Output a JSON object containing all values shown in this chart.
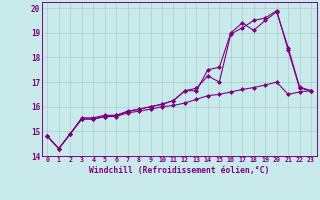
{
  "xlabel": "Windchill (Refroidissement éolien,°C)",
  "x": [
    0,
    1,
    2,
    3,
    4,
    5,
    6,
    7,
    8,
    9,
    10,
    11,
    12,
    13,
    14,
    15,
    16,
    17,
    18,
    19,
    20,
    21,
    22,
    23
  ],
  "line1": [
    14.8,
    14.3,
    14.9,
    15.5,
    15.5,
    15.6,
    15.65,
    15.8,
    15.9,
    16.0,
    16.1,
    16.25,
    16.65,
    16.65,
    17.5,
    17.6,
    19.0,
    19.4,
    19.1,
    19.5,
    19.85,
    18.4,
    16.8,
    16.65
  ],
  "line2": [
    14.8,
    14.3,
    14.9,
    15.55,
    15.55,
    15.65,
    15.65,
    15.82,
    15.9,
    16.0,
    16.1,
    16.25,
    16.65,
    16.75,
    17.25,
    17.0,
    18.95,
    19.2,
    19.5,
    19.6,
    19.9,
    18.3,
    16.75,
    16.65
  ],
  "line3": [
    14.8,
    14.3,
    14.9,
    15.5,
    15.5,
    15.6,
    15.6,
    15.75,
    15.82,
    15.9,
    16.0,
    16.05,
    16.15,
    16.3,
    16.45,
    16.5,
    16.6,
    16.7,
    16.78,
    16.88,
    17.0,
    16.5,
    16.6,
    16.65
  ],
  "bg_color": "#c8eaea",
  "line_color": "#800080",
  "grid_color": "#aacccc",
  "ylim": [
    14.0,
    20.25
  ],
  "yticks": [
    14,
    15,
    16,
    17,
    18,
    19,
    20
  ],
  "xlim": [
    -0.5,
    23.5
  ]
}
